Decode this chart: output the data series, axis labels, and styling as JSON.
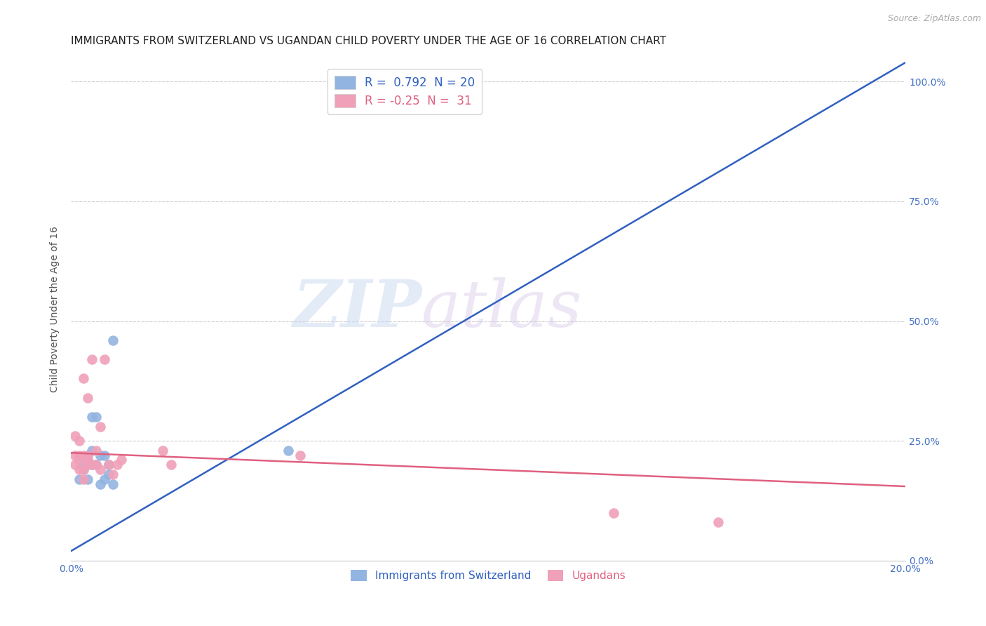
{
  "title": "IMMIGRANTS FROM SWITZERLAND VS UGANDAN CHILD POVERTY UNDER THE AGE OF 16 CORRELATION CHART",
  "source": "Source: ZipAtlas.com",
  "ylabel": "Child Poverty Under the Age of 16",
  "xlim": [
    0.0,
    0.2
  ],
  "ylim": [
    0.0,
    1.05
  ],
  "xticks": [
    0.0,
    0.2
  ],
  "xtick_labels": [
    "0.0%",
    "20.0%"
  ],
  "right_yticks": [
    0.0,
    0.25,
    0.5,
    0.75,
    1.0
  ],
  "right_ytick_labels": [
    "0.0%",
    "25.0%",
    "50.0%",
    "75.0%",
    "100.0%"
  ],
  "r_blue": 0.792,
  "n_blue": 20,
  "r_pink": -0.25,
  "n_pink": 31,
  "blue_color": "#92b4e0",
  "pink_color": "#f0a0b8",
  "blue_line_color": "#3060c0",
  "pink_line_color": "#e06080",
  "legend_blue_label": "Immigrants from Switzerland",
  "legend_pink_label": "Ugandans",
  "blue_scatter_x": [
    0.002,
    0.003,
    0.003,
    0.004,
    0.004,
    0.005,
    0.005,
    0.005,
    0.006,
    0.006,
    0.007,
    0.007,
    0.008,
    0.008,
    0.009,
    0.009,
    0.01,
    0.01,
    0.052,
    0.095
  ],
  "blue_scatter_y": [
    0.17,
    0.19,
    0.2,
    0.17,
    0.22,
    0.2,
    0.23,
    0.3,
    0.2,
    0.3,
    0.22,
    0.16,
    0.17,
    0.22,
    0.18,
    0.2,
    0.16,
    0.46,
    0.23,
    1.0
  ],
  "pink_scatter_x": [
    0.001,
    0.001,
    0.001,
    0.002,
    0.002,
    0.002,
    0.002,
    0.003,
    0.003,
    0.003,
    0.003,
    0.004,
    0.004,
    0.004,
    0.004,
    0.005,
    0.005,
    0.006,
    0.006,
    0.007,
    0.007,
    0.008,
    0.009,
    0.01,
    0.011,
    0.012,
    0.022,
    0.024,
    0.055,
    0.13,
    0.155
  ],
  "pink_scatter_y": [
    0.2,
    0.22,
    0.26,
    0.19,
    0.21,
    0.22,
    0.25,
    0.17,
    0.19,
    0.22,
    0.38,
    0.2,
    0.21,
    0.22,
    0.34,
    0.2,
    0.42,
    0.2,
    0.23,
    0.19,
    0.28,
    0.42,
    0.2,
    0.18,
    0.2,
    0.21,
    0.23,
    0.2,
    0.22,
    0.1,
    0.08
  ],
  "blue_line_x0": 0.0,
  "blue_line_y0": 0.02,
  "blue_line_x1": 0.2,
  "blue_line_y1": 1.04,
  "pink_line_x0": 0.0,
  "pink_line_y0": 0.225,
  "pink_line_x1": 0.2,
  "pink_line_y1": 0.155,
  "watermark_zip": "ZIP",
  "watermark_atlas": "atlas",
  "background_color": "#ffffff",
  "grid_color": "#cccccc",
  "title_fontsize": 11,
  "axis_label_fontsize": 10,
  "tick_fontsize": 10,
  "right_tick_color": "#4472c4",
  "bottom_tick_color": "#4472c4",
  "ylabel_color": "#555555",
  "title_color": "#222222"
}
